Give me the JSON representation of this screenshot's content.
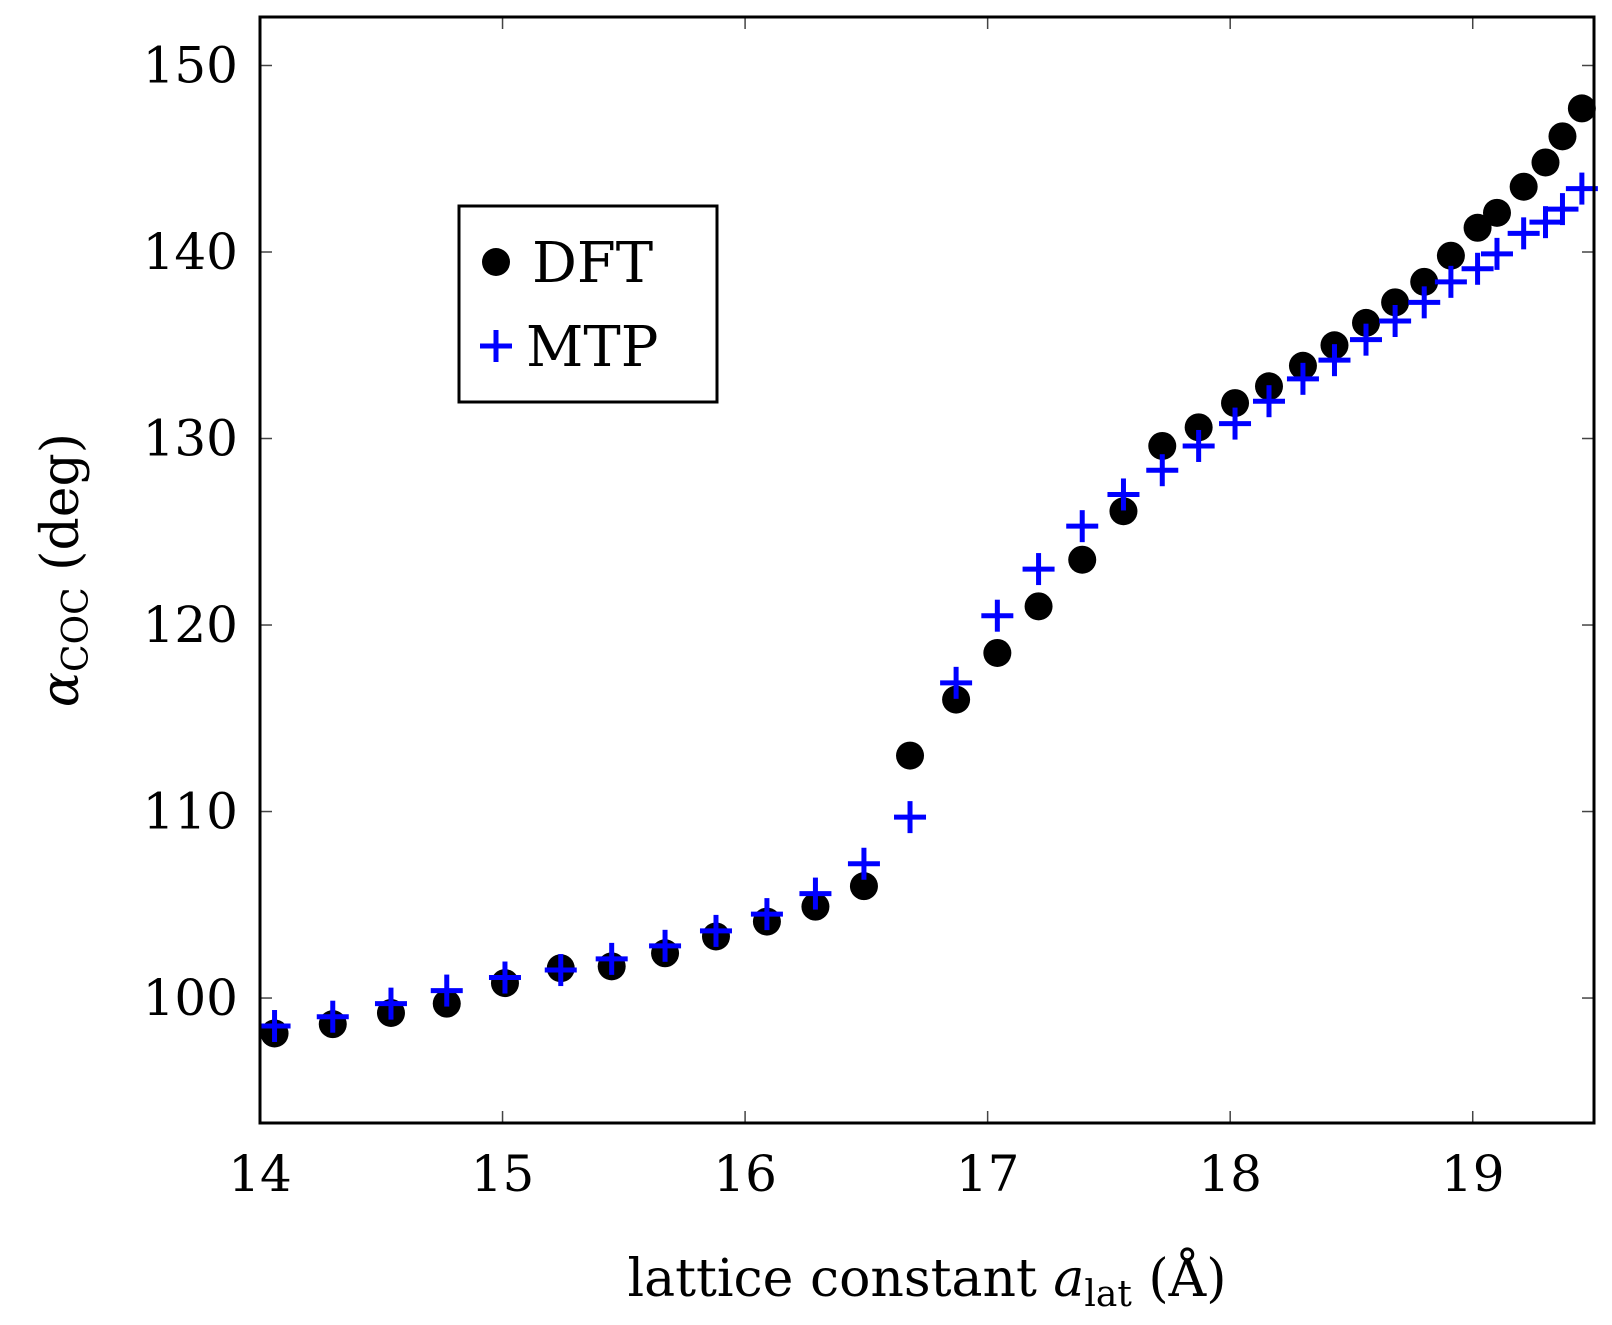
{
  "chart_data": {
    "type": "scatter",
    "title": "",
    "xlabel": {
      "main": "lattice constant ",
      "var": "a",
      "sub": "lat",
      "unit": " (Å)"
    },
    "ylabel": {
      "var": "α",
      "sub": "COC",
      "unit": " (deg)"
    },
    "xlim": [
      14,
      19.5
    ],
    "ylim": [
      93.3,
      152.6
    ],
    "xticks": [
      14,
      15,
      16,
      17,
      18,
      19
    ],
    "yticks": [
      100,
      110,
      120,
      130,
      140,
      150
    ],
    "legend_position": "upper-left",
    "colors": {
      "dft": "#000000",
      "mtp": "#0000ff"
    },
    "series": [
      {
        "name": "DFT",
        "marker": "circle",
        "x": [
          14.06,
          14.3,
          14.54,
          14.77,
          15.01,
          15.24,
          15.45,
          15.67,
          15.88,
          16.09,
          16.29,
          16.49,
          16.68,
          16.87,
          17.04,
          17.21,
          17.39,
          17.56,
          17.72,
          17.87,
          18.02,
          18.16,
          18.3,
          18.43,
          18.56,
          18.68,
          18.8,
          18.91,
          19.02,
          19.1,
          19.21,
          19.3,
          19.37,
          19.45
        ],
        "y": [
          98.1,
          98.6,
          99.2,
          99.7,
          100.8,
          101.6,
          101.7,
          102.4,
          103.3,
          104.1,
          104.9,
          106.0,
          113.0,
          116.0,
          118.5,
          121.0,
          123.5,
          126.1,
          129.6,
          130.6,
          131.9,
          132.8,
          133.9,
          135.0,
          136.2,
          137.3,
          138.4,
          139.8,
          141.3,
          142.1,
          143.5,
          144.8,
          146.2,
          147.7
        ]
      },
      {
        "name": "MTP",
        "marker": "plus",
        "x": [
          14.06,
          14.3,
          14.54,
          14.77,
          15.01,
          15.24,
          15.45,
          15.67,
          15.88,
          16.09,
          16.29,
          16.49,
          16.68,
          16.87,
          17.04,
          17.21,
          17.39,
          17.56,
          17.72,
          17.87,
          18.02,
          18.16,
          18.3,
          18.43,
          18.56,
          18.68,
          18.8,
          18.91,
          19.02,
          19.1,
          19.21,
          19.3,
          19.37,
          19.45
        ],
        "y": [
          98.5,
          99.0,
          99.7,
          100.4,
          101.1,
          101.5,
          102.1,
          102.8,
          103.6,
          104.5,
          105.6,
          107.2,
          109.7,
          116.9,
          120.5,
          123.0,
          125.3,
          127.0,
          128.3,
          129.6,
          130.8,
          132.0,
          133.2,
          134.2,
          135.3,
          136.3,
          137.3,
          138.4,
          139.1,
          139.9,
          141.0,
          141.6,
          142.3,
          143.4
        ]
      }
    ]
  }
}
